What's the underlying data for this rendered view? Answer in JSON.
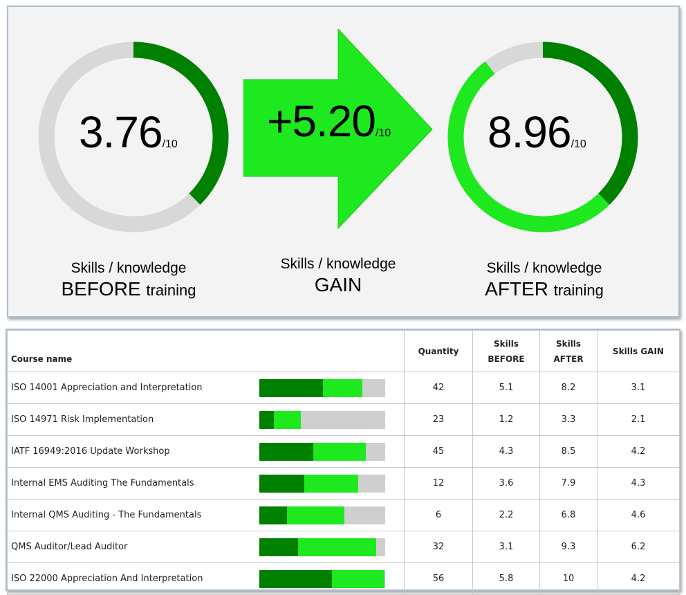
{
  "summary": {
    "before": {
      "value": "3.76",
      "denominator": "/10",
      "score": 3.76,
      "label_line1": "Skills / knowledge",
      "label_big": "BEFORE",
      "label_small": "training"
    },
    "gain": {
      "value": "+5.20",
      "denominator": "/10",
      "score": 5.2,
      "label_line1": "Skills / knowledge",
      "label_big": "GAIN"
    },
    "after": {
      "value": "8.96",
      "denominator": "/10",
      "score": 8.96,
      "label_line1": "Skills / knowledge",
      "label_big": "AFTER",
      "label_small": "training"
    }
  },
  "table": {
    "headers": {
      "course_name": "Course name",
      "quantity": "Quantity",
      "before_l1": "Skills",
      "before_l2": "BEFORE",
      "after_l1": "Skills",
      "after_l2": "AFTER",
      "gain": "Skills GAIN"
    },
    "rows": [
      {
        "name": "ISO 14001 Appreciation and Interpretation",
        "quantity": "42",
        "before": "5.1",
        "after": "8.2",
        "gain": "3.1"
      },
      {
        "name": "ISO 14971 Risk Implementation",
        "quantity": "23",
        "before": "1.2",
        "after": "3.3",
        "gain": "2.1"
      },
      {
        "name": "IATF 16949:2016 Update Workshop",
        "quantity": "45",
        "before": "4.3",
        "after": "8.5",
        "gain": "4.2"
      },
      {
        "name": "Internal EMS Auditing The Fundamentals",
        "quantity": "12",
        "before": "3.6",
        "after": "7.9",
        "gain": "4.3"
      },
      {
        "name": "Internal QMS Auditing - The Fundamentals",
        "quantity": "6",
        "before": "2.2",
        "after": "6.8",
        "gain": "4.6"
      },
      {
        "name": "QMS Auditor/Lead Auditor",
        "quantity": "32",
        "before": "3.1",
        "after": "9.3",
        "gain": "6.2"
      },
      {
        "name": "ISO 22000 Appreciation And Interpretation",
        "quantity": "56",
        "before": "5.8",
        "after": "10",
        "gain": "4.2"
      }
    ]
  },
  "colors": {
    "dark_green": "#008000",
    "bright_green": "#1ee81e",
    "grey": "#d8d8d8"
  },
  "chart_data": [
    {
      "type": "pie",
      "variant": "donut",
      "labels": [
        "BEFORE training",
        "remaining"
      ],
      "values": [
        3.76,
        6.24
      ],
      "max": 10
    },
    {
      "type": "pie",
      "variant": "donut",
      "labels": [
        "BEFORE training",
        "GAIN",
        "remaining"
      ],
      "values": [
        3.76,
        5.2,
        1.04
      ],
      "max": 10
    },
    {
      "type": "bar",
      "orientation": "horizontal",
      "stacked": true,
      "categories": [
        "ISO 14001 Appreciation and Interpretation",
        "ISO 14971 Risk Implementation",
        "IATF 16949:2016 Update Workshop",
        "Internal EMS Auditing The Fundamentals",
        "Internal QMS Auditing - The Fundamentals",
        "QMS Auditor/Lead Auditor",
        "ISO 22000 Appreciation And Interpretation"
      ],
      "series": [
        {
          "values": [
            5.1,
            1.2,
            4.3,
            3.6,
            2.2,
            3.1,
            5.8
          ]
        },
        {
          "values": [
            3.1,
            2.1,
            4.2,
            4.3,
            4.6,
            6.2,
            4.2
          ]
        }
      ],
      "xlim": [
        0,
        10
      ]
    }
  ]
}
